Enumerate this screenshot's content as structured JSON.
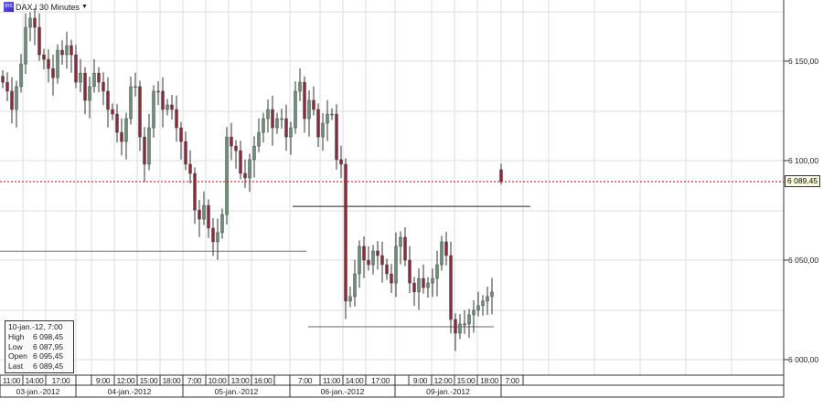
{
  "header": {
    "title": "DAX.I 30 Minutes",
    "logo_text": "IHS"
  },
  "info": {
    "date": "10-jan.-12, 7:00",
    "rows": [
      {
        "k": "High",
        "v": "6 098,45"
      },
      {
        "k": "Low",
        "v": "6 087,95"
      },
      {
        "k": "Open",
        "v": "6 095,45"
      },
      {
        "k": "Last",
        "v": "6 089,45"
      }
    ]
  },
  "last_label": "6 089,45",
  "colors": {
    "up": "#6b8f78",
    "down": "#8b2a3a",
    "last_line": "#cc0000",
    "lastbox": "#ffffe0"
  },
  "chart_data": {
    "type": "candlestick",
    "title": "DAX.I 30 Minutes",
    "y_ticks": [
      {
        "v": 6150,
        "label": "6 150,00"
      },
      {
        "v": 6100,
        "label": "6 100,00"
      },
      {
        "v": 6050,
        "label": "6 050,00"
      },
      {
        "v": 6000,
        "label": "6 000,00"
      }
    ],
    "ylim": [
      5988,
      6180
    ],
    "grid": true,
    "time_labels": [
      "11:00",
      "14:00",
      "17:00",
      "9:00",
      "12:00",
      "15:00",
      "18:00",
      "7:00",
      "10:00",
      "13:00",
      "16:00",
      "7:00",
      "11:00",
      "14:00",
      "17:00",
      "9:00",
      "12:00",
      "15:00",
      "18:00",
      "7:00"
    ],
    "date_labels": [
      "03-jan.-2012",
      "04-jan.-2012",
      "05-jan.-2012",
      "06-jan.-2012",
      "09-jan.-2012"
    ],
    "closes": [
      6139.4,
      6134.9,
      6125.7,
      6137.2,
      6148.6,
      6167.0,
      6171.6,
      6167.0,
      6153.2,
      6150.9,
      6146.3,
      6141.7,
      6155.5,
      6153.2,
      6157.8,
      6153.2,
      6139.4,
      6144.0,
      6130.3,
      6137.2,
      6144.0,
      6139.4,
      6134.9,
      6125.7,
      6123.4,
      6114.2,
      6109.6,
      6121.1,
      6137.2,
      6137.2,
      6111.9,
      6098.2,
      6116.5,
      6134.9,
      6134.9,
      6125.7,
      6128.0,
      6125.7,
      6116.5,
      6109.6,
      6098.2,
      6093.6,
      6075.2,
      6070.6,
      6077.5,
      6066.1,
      6059.2,
      6063.8,
      6072.9,
      6111.9,
      6107.3,
      6105.0,
      6093.6,
      6091.3,
      6100.5,
      6107.3,
      6114.2,
      6121.1,
      6125.7,
      6116.5,
      6121.1,
      6121.1,
      6111.9,
      6116.5,
      6134.9,
      6139.4,
      6121.1,
      6130.3,
      6125.7,
      6111.9,
      6118.8,
      6123.4,
      6123.4,
      6100.5,
      6098.2,
      6029.4,
      6031.7,
      6043.1,
      6056.9,
      6050.0,
      6047.7,
      6054.6,
      6052.3,
      6047.7,
      6043.1,
      6038.5,
      6056.9,
      6061.5,
      6050.0,
      6038.5,
      6034.0,
      6040.8,
      6036.2,
      6038.5,
      6040.8,
      6047.7,
      6059.2,
      6052.3,
      6020.2,
      6013.3,
      6017.9,
      6017.9,
      6022.5,
      6024.8,
      6027.1,
      6029.4,
      6031.7,
      6034.0
    ],
    "last_candle": {
      "open": 6095.45,
      "high": 6098.45,
      "low": 6087.95,
      "close": 6089.45
    },
    "last_price": 6089.45,
    "horizontal_lines": [
      6077.0,
      6016.5,
      6054.5
    ]
  }
}
